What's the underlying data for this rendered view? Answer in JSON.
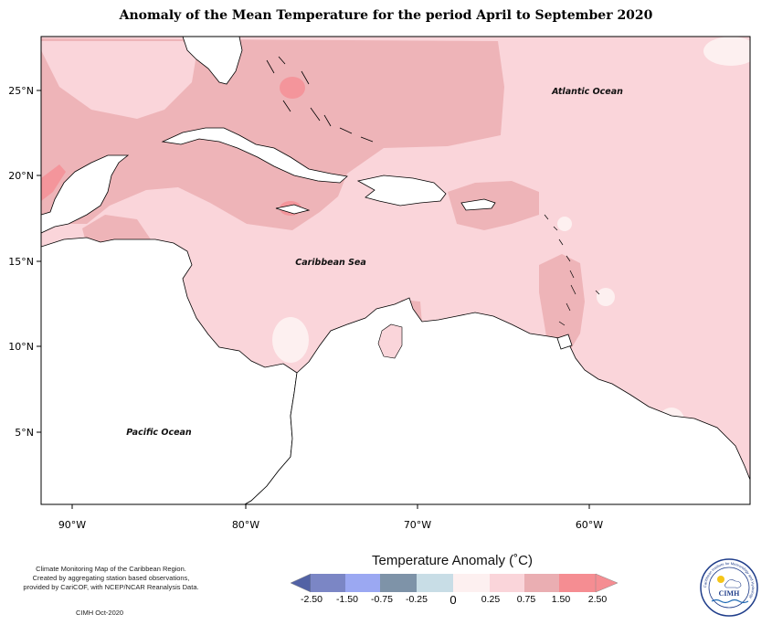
{
  "title": "Anomaly of the Mean Temperature for the period April to September 2020",
  "axes": {
    "lat_labels": [
      "25°N",
      "20°N",
      "15°N",
      "10°N",
      "5°N"
    ],
    "lon_labels": [
      "90°W",
      "80°W",
      "70°W",
      "60°W"
    ]
  },
  "oceans": {
    "atlantic": "Atlantic Ocean",
    "caribbean": "Caribbean Sea",
    "pacific": "Pacific Ocean"
  },
  "legend": {
    "title": "Temperature Anomaly (˚C)",
    "tick_labels": [
      "-2.50",
      "-1.50",
      "-0.75",
      "-0.25",
      "0",
      "0.25",
      "0.75",
      "1.50",
      "2.50"
    ],
    "colors": [
      "#5262a5",
      "#7b86c5",
      "#9ba8f2",
      "#7e93a8",
      "#c8dde6",
      "#fdf0f0",
      "#fad5da",
      "#eaaeb2",
      "#f58d92"
    ]
  },
  "credit": {
    "line1": "Climate Monitoring Map of the Caribbean Region.",
    "line2": "Created by aggregating station based observations,",
    "line3": "provided by CariCOF, with NCEP/NCAR Reanalysis Data.",
    "date": "CIMH Oct-2020"
  },
  "logo": {
    "text": "CIMH",
    "ring_text": "Caribbean Institute for Meteorology and Hydrology"
  }
}
